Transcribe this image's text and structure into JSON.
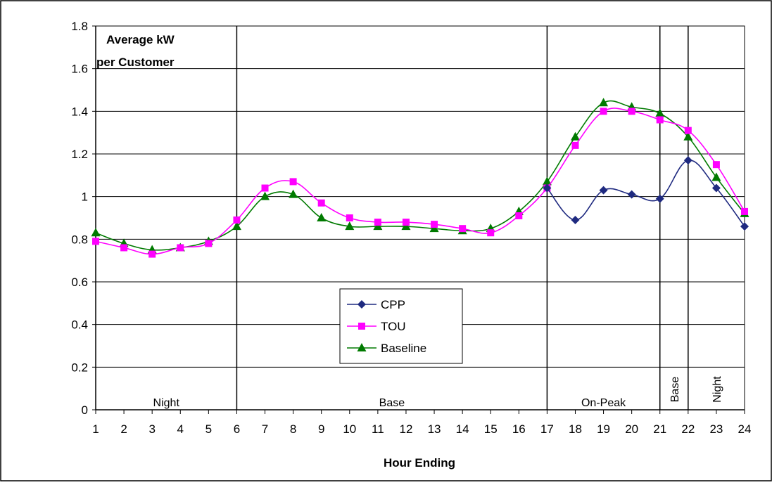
{
  "chart_data": {
    "type": "line",
    "title": "Average kW per Customer",
    "title_lines": [
      "Average kW",
      "per Customer"
    ],
    "xlabel": "Hour Ending",
    "ylabel": "",
    "x": [
      1,
      2,
      3,
      4,
      5,
      6,
      7,
      8,
      9,
      10,
      11,
      12,
      13,
      14,
      15,
      16,
      17,
      18,
      19,
      20,
      21,
      22,
      23,
      24
    ],
    "xlim": [
      1,
      24
    ],
    "ylim": [
      0,
      1.8
    ],
    "yticks": [
      0,
      0.2,
      0.4,
      0.6,
      0.8,
      1,
      1.2,
      1.4,
      1.6,
      1.8
    ],
    "ytick_labels": [
      "0",
      "0.2",
      "0.4",
      "0.6",
      "0.8",
      "1",
      "1.2",
      "1.4",
      "1.6",
      "1.8"
    ],
    "grid": "horizontal",
    "legend_position": "center",
    "series": [
      {
        "name": "CPP",
        "color": "#1f2a80",
        "marker": "diamond",
        "x": [
          17,
          18,
          19,
          20,
          21,
          22,
          23,
          24
        ],
        "values": [
          1.04,
          0.89,
          1.03,
          1.01,
          0.99,
          1.17,
          1.04,
          0.86
        ]
      },
      {
        "name": "TOU",
        "color": "#ff00ff",
        "marker": "square",
        "x": [
          1,
          2,
          3,
          4,
          5,
          6,
          7,
          8,
          9,
          10,
          11,
          12,
          13,
          14,
          15,
          16,
          17,
          18,
          19,
          20,
          21,
          22,
          23,
          24
        ],
        "values": [
          0.79,
          0.76,
          0.73,
          0.76,
          0.78,
          0.89,
          1.04,
          1.07,
          0.97,
          0.9,
          0.88,
          0.88,
          0.87,
          0.85,
          0.83,
          0.91,
          1.04,
          1.24,
          1.4,
          1.4,
          1.36,
          1.31,
          1.15,
          0.93
        ]
      },
      {
        "name": "Baseline",
        "color": "#007a00",
        "marker": "triangle",
        "x": [
          1,
          2,
          3,
          4,
          5,
          6,
          7,
          8,
          9,
          10,
          11,
          12,
          13,
          14,
          15,
          16,
          17,
          18,
          19,
          20,
          21,
          22,
          23,
          24
        ],
        "values": [
          0.83,
          0.78,
          0.75,
          0.76,
          0.79,
          0.86,
          1.0,
          1.01,
          0.9,
          0.86,
          0.86,
          0.86,
          0.85,
          0.84,
          0.85,
          0.93,
          1.07,
          1.28,
          1.44,
          1.42,
          1.39,
          1.28,
          1.09,
          0.92
        ]
      }
    ],
    "period_dividers": [
      6,
      17,
      21,
      22
    ],
    "periods": [
      {
        "label": "Night",
        "from": 1,
        "to": 6,
        "vertical": false
      },
      {
        "label": "Base",
        "from": 6,
        "to": 17,
        "vertical": false
      },
      {
        "label": "On-Peak",
        "from": 17,
        "to": 21,
        "vertical": false
      },
      {
        "label": "Base",
        "from": 21,
        "to": 22,
        "vertical": true
      },
      {
        "label": "Night",
        "from": 22,
        "to": 24,
        "vertical": true
      }
    ]
  }
}
